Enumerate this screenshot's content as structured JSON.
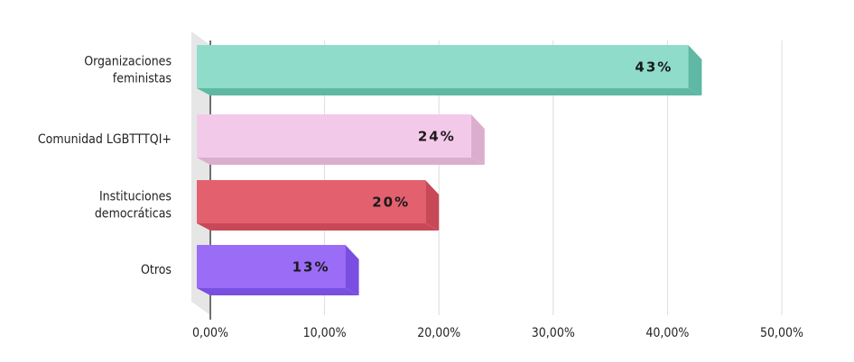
{
  "chart_data": {
    "type": "bar3d-horizontal",
    "categories": [
      [
        "Organizaciones",
        "feministas"
      ],
      [
        "Comunidad LGBTTTQI+"
      ],
      [
        "Instituciones",
        "democráticas"
      ],
      [
        "Otros"
      ]
    ],
    "values": [
      43,
      24,
      20,
      13
    ],
    "value_labels": [
      "43%",
      "24%",
      "20%",
      "13%"
    ],
    "colors": [
      "#8fdccb",
      "#f3c9ea",
      "#e3606e",
      "#9b6cf5"
    ],
    "side_colors": [
      "#5fb8a3",
      "#dcaecd",
      "#c94858",
      "#7a4ee0"
    ],
    "xlim": [
      0,
      50
    ],
    "xticks": [
      {
        "value": 0,
        "label": "0,00%"
      },
      {
        "value": 10,
        "label": "10,00%"
      },
      {
        "value": 20,
        "label": "20,00%"
      },
      {
        "value": 30,
        "label": "30,00%"
      },
      {
        "value": 40,
        "label": "40,00%"
      },
      {
        "value": 50,
        "label": "50,00%"
      }
    ],
    "grid": true
  }
}
